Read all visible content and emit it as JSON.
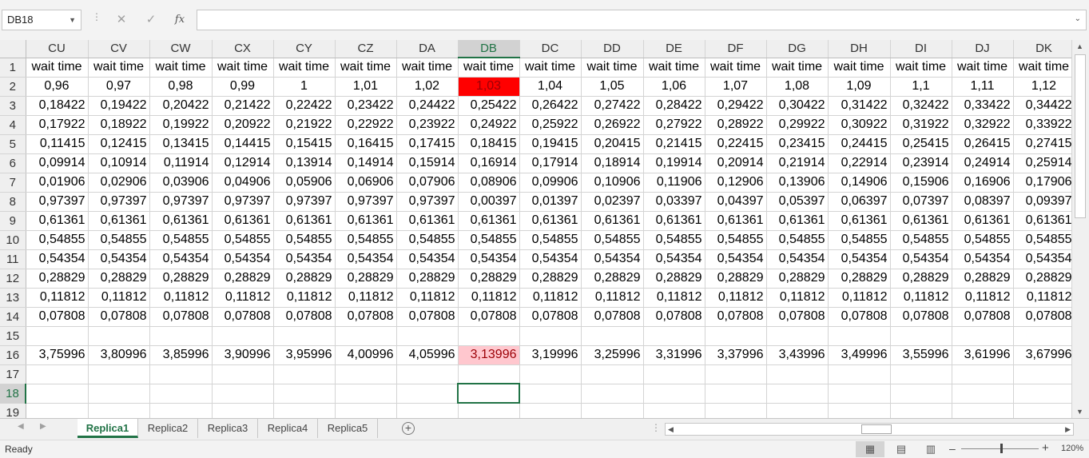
{
  "name_box": {
    "value": "DB18"
  },
  "formula_bar": {
    "cancel_icon": "✕",
    "enter_icon": "✓",
    "fx_label": "fx",
    "value": ""
  },
  "columns": [
    "CU",
    "CV",
    "CW",
    "CX",
    "CY",
    "CZ",
    "DA",
    "DB",
    "DC",
    "DD",
    "DE",
    "DF",
    "DG",
    "DH",
    "DI",
    "DJ",
    "DK"
  ],
  "selected_column": "DB",
  "selected_row": 18,
  "highlight_colors": {
    "red_fill": "#ff0000",
    "pink_fill": "#ffc7ce",
    "dark_red_text": "#9c0006",
    "accent": "#217346"
  },
  "rows": [
    {
      "n": "1",
      "cells": [
        "wait time",
        "wait time",
        "wait time",
        "wait time",
        "wait time",
        "wait time",
        "wait time",
        "wait time",
        "wait time",
        "wait time",
        "wait time",
        "wait time",
        "wait time",
        "wait time",
        "wait time",
        "wait time",
        "wait time"
      ]
    },
    {
      "n": "2",
      "cells": [
        "0,96",
        "0,97",
        "0,98",
        "0,99",
        "1",
        "1,01",
        "1,02",
        "1,03",
        "1,04",
        "1,05",
        "1,06",
        "1,07",
        "1,08",
        "1,09",
        "1,1",
        "1,11",
        "1,12"
      ]
    },
    {
      "n": "3",
      "cells": [
        "0,18422",
        "0,19422",
        "0,20422",
        "0,21422",
        "0,22422",
        "0,23422",
        "0,24422",
        "0,25422",
        "0,26422",
        "0,27422",
        "0,28422",
        "0,29422",
        "0,30422",
        "0,31422",
        "0,32422",
        "0,33422",
        "0,34422"
      ]
    },
    {
      "n": "4",
      "cells": [
        "0,17922",
        "0,18922",
        "0,19922",
        "0,20922",
        "0,21922",
        "0,22922",
        "0,23922",
        "0,24922",
        "0,25922",
        "0,26922",
        "0,27922",
        "0,28922",
        "0,29922",
        "0,30922",
        "0,31922",
        "0,32922",
        "0,33922"
      ]
    },
    {
      "n": "5",
      "cells": [
        "0,11415",
        "0,12415",
        "0,13415",
        "0,14415",
        "0,15415",
        "0,16415",
        "0,17415",
        "0,18415",
        "0,19415",
        "0,20415",
        "0,21415",
        "0,22415",
        "0,23415",
        "0,24415",
        "0,25415",
        "0,26415",
        "0,27415"
      ]
    },
    {
      "n": "6",
      "cells": [
        "0,09914",
        "0,10914",
        "0,11914",
        "0,12914",
        "0,13914",
        "0,14914",
        "0,15914",
        "0,16914",
        "0,17914",
        "0,18914",
        "0,19914",
        "0,20914",
        "0,21914",
        "0,22914",
        "0,23914",
        "0,24914",
        "0,25914"
      ]
    },
    {
      "n": "7",
      "cells": [
        "0,01906",
        "0,02906",
        "0,03906",
        "0,04906",
        "0,05906",
        "0,06906",
        "0,07906",
        "0,08906",
        "0,09906",
        "0,10906",
        "0,11906",
        "0,12906",
        "0,13906",
        "0,14906",
        "0,15906",
        "0,16906",
        "0,17906"
      ]
    },
    {
      "n": "8",
      "cells": [
        "0,97397",
        "0,97397",
        "0,97397",
        "0,97397",
        "0,97397",
        "0,97397",
        "0,97397",
        "0,00397",
        "0,01397",
        "0,02397",
        "0,03397",
        "0,04397",
        "0,05397",
        "0,06397",
        "0,07397",
        "0,08397",
        "0,09397"
      ]
    },
    {
      "n": "9",
      "cells": [
        "0,61361",
        "0,61361",
        "0,61361",
        "0,61361",
        "0,61361",
        "0,61361",
        "0,61361",
        "0,61361",
        "0,61361",
        "0,61361",
        "0,61361",
        "0,61361",
        "0,61361",
        "0,61361",
        "0,61361",
        "0,61361",
        "0,61361"
      ]
    },
    {
      "n": "10",
      "cells": [
        "0,54855",
        "0,54855",
        "0,54855",
        "0,54855",
        "0,54855",
        "0,54855",
        "0,54855",
        "0,54855",
        "0,54855",
        "0,54855",
        "0,54855",
        "0,54855",
        "0,54855",
        "0,54855",
        "0,54855",
        "0,54855",
        "0,54855"
      ]
    },
    {
      "n": "11",
      "cells": [
        "0,54354",
        "0,54354",
        "0,54354",
        "0,54354",
        "0,54354",
        "0,54354",
        "0,54354",
        "0,54354",
        "0,54354",
        "0,54354",
        "0,54354",
        "0,54354",
        "0,54354",
        "0,54354",
        "0,54354",
        "0,54354",
        "0,54354"
      ]
    },
    {
      "n": "12",
      "cells": [
        "0,28829",
        "0,28829",
        "0,28829",
        "0,28829",
        "0,28829",
        "0,28829",
        "0,28829",
        "0,28829",
        "0,28829",
        "0,28829",
        "0,28829",
        "0,28829",
        "0,28829",
        "0,28829",
        "0,28829",
        "0,28829",
        "0,28829"
      ]
    },
    {
      "n": "13",
      "cells": [
        "0,11812",
        "0,11812",
        "0,11812",
        "0,11812",
        "0,11812",
        "0,11812",
        "0,11812",
        "0,11812",
        "0,11812",
        "0,11812",
        "0,11812",
        "0,11812",
        "0,11812",
        "0,11812",
        "0,11812",
        "0,11812",
        "0,11812"
      ]
    },
    {
      "n": "14",
      "cells": [
        "0,07808",
        "0,07808",
        "0,07808",
        "0,07808",
        "0,07808",
        "0,07808",
        "0,07808",
        "0,07808",
        "0,07808",
        "0,07808",
        "0,07808",
        "0,07808",
        "0,07808",
        "0,07808",
        "0,07808",
        "0,07808",
        "0,07808"
      ]
    },
    {
      "n": "15",
      "cells": [
        "",
        "",
        "",
        "",
        "",
        "",
        "",
        "",
        "",
        "",
        "",
        "",
        "",
        "",
        "",
        "",
        ""
      ]
    },
    {
      "n": "16",
      "cells": [
        "3,75996",
        "3,80996",
        "3,85996",
        "3,90996",
        "3,95996",
        "4,00996",
        "4,05996",
        "3,13996",
        "3,19996",
        "3,25996",
        "3,31996",
        "3,37996",
        "3,43996",
        "3,49996",
        "3,55996",
        "3,61996",
        "3,67996"
      ]
    },
    {
      "n": "17",
      "cells": [
        "",
        "",
        "",
        "",
        "",
        "",
        "",
        "",
        "",
        "",
        "",
        "",
        "",
        "",
        "",
        "",
        ""
      ]
    },
    {
      "n": "18",
      "cells": [
        "",
        "",
        "",
        "",
        "",
        "",
        "",
        "",
        "",
        "",
        "",
        "",
        "",
        "",
        "",
        "",
        ""
      ]
    },
    {
      "n": "19",
      "cells": [
        "",
        "",
        "",
        "",
        "",
        "",
        "",
        "",
        "",
        "",
        "",
        "",
        "",
        "",
        "",
        "",
        ""
      ]
    }
  ],
  "sheet_tabs": [
    "Replica1",
    "Replica2",
    "Replica3",
    "Replica4",
    "Replica5"
  ],
  "active_sheet": "Replica1",
  "status": {
    "text": "Ready",
    "zoom": "120%"
  }
}
